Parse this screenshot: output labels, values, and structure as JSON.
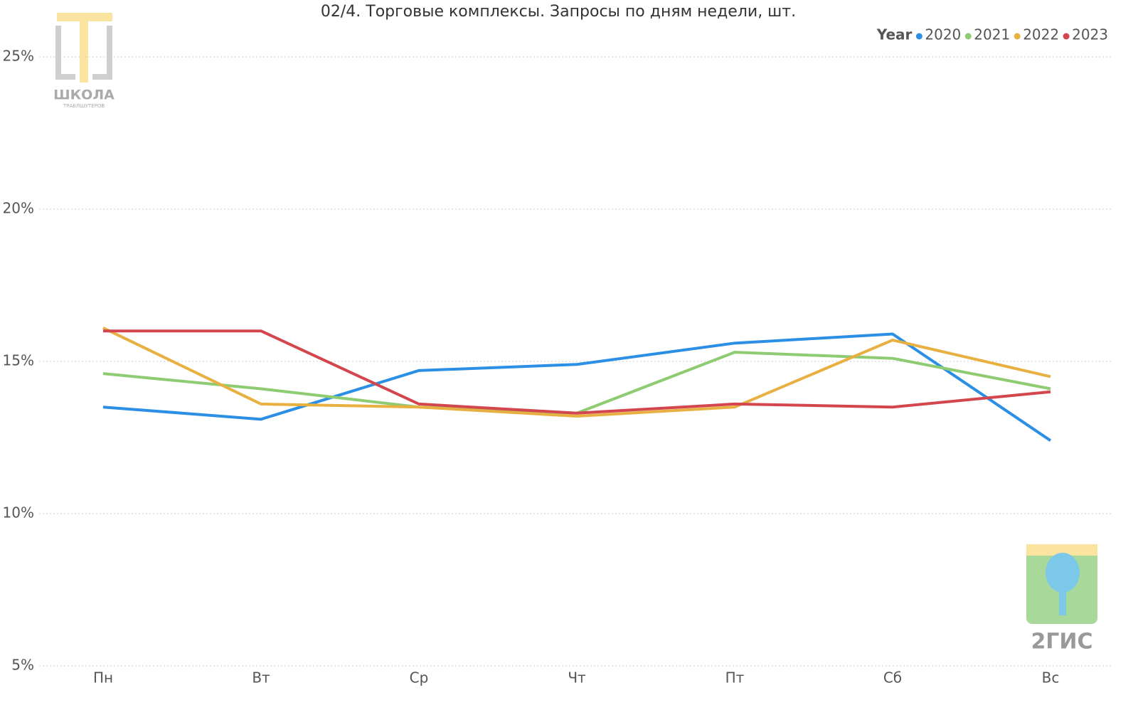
{
  "chart_data": {
    "type": "line",
    "title": "02/4. Торговые комплексы. Запросы по дням недели, шт.",
    "legend_title": "Year",
    "legend": "top-right",
    "grid": true,
    "categories": [
      "Пн",
      "Вт",
      "Ср",
      "Чт",
      "Пт",
      "Сб",
      "Вс"
    ],
    "series": [
      {
        "name": "2020",
        "color": "#2b8fe6",
        "values": [
          13.5,
          13.1,
          14.7,
          14.9,
          15.6,
          15.9,
          12.4
        ]
      },
      {
        "name": "2021",
        "color": "#8fcb72",
        "values": [
          14.6,
          14.1,
          13.5,
          13.3,
          15.3,
          15.1,
          14.1
        ]
      },
      {
        "name": "2022",
        "color": "#e8b041",
        "values": [
          16.1,
          13.6,
          13.5,
          13.2,
          13.5,
          15.7,
          14.5
        ]
      },
      {
        "name": "2023",
        "color": "#d4464e",
        "values": [
          16.0,
          16.0,
          13.6,
          13.3,
          13.6,
          13.5,
          14.0
        ]
      }
    ],
    "ylim": [
      5,
      25
    ],
    "yticks": [
      {
        "value": 5,
        "label": "5%"
      },
      {
        "value": 10,
        "label": "10%"
      },
      {
        "value": 15,
        "label": "15%"
      },
      {
        "value": 20,
        "label": "20%"
      },
      {
        "value": 25,
        "label": "25%"
      }
    ],
    "annotations": [
      "ШКОЛА",
      "ТРАБЛШУТЕРОВ",
      "2ГИС"
    ]
  }
}
